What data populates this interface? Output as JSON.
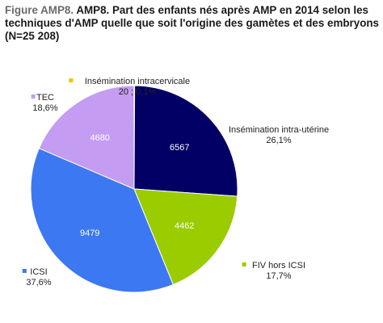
{
  "title": {
    "prefix": "Figure AMP8.",
    "main": "AMP8. Part des enfants nés après AMP en 2014 selon les techniques d'AMP quelle que soit l'origine des gamètes et des embryons (N=25 208)"
  },
  "chart_data": {
    "type": "pie",
    "title": "Figure AMP8. AMP8. Part des enfants nés après AMP en 2014 selon les techniques d'AMP quelle que soit l'origine des gamètes et des embryons (N=25 208)",
    "total": 25208,
    "start_angle_deg": 0,
    "direction": "clockwise",
    "slices": [
      {
        "label": "Insémination intracervicale",
        "value": 20,
        "percent": "0,1%",
        "display": "20 ; 0,1%",
        "color": "#f2c400",
        "show_value_inside": false
      },
      {
        "label": "Insémination intra-utérine",
        "value": 6567,
        "percent": "26,1%",
        "color": "#020065",
        "show_value_inside": true
      },
      {
        "label": "FIV hors ICSI",
        "value": 4462,
        "percent": "17,7%",
        "color": "#9acc00",
        "show_value_inside": true
      },
      {
        "label": "ICSI",
        "value": 9479,
        "percent": "37,6%",
        "color": "#3c78f2",
        "show_value_inside": true
      },
      {
        "label": "TEC",
        "value": 4680,
        "percent": "18,6%",
        "color": "#c49cf2",
        "show_value_inside": true
      }
    ]
  }
}
